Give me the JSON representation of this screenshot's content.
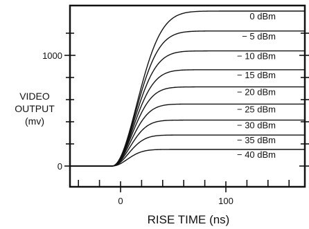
{
  "chart_data": {
    "type": "line",
    "xlabel": "RISE TIME (ns)",
    "ylabel_lines": [
      "VIDEO",
      "OUTPUT",
      "(mv)"
    ],
    "xlim": [
      -45,
      175
    ],
    "ylim": [
      -20,
      1480
    ],
    "x_ticks": [
      {
        "value": 0,
        "label": "0"
      },
      {
        "value": 100,
        "label": "100"
      }
    ],
    "x_minor_ticks": [
      -40,
      -20,
      20,
      40,
      60,
      80,
      120,
      140,
      160
    ],
    "y_ticks": [
      {
        "value": 0,
        "label": "0"
      },
      {
        "value": 1000,
        "label": "1000"
      }
    ],
    "y_minor_ticks": [
      200,
      400,
      600,
      800,
      1200
    ],
    "grid": false,
    "legend": "inline-right",
    "series": [
      {
        "name": "0 dBm",
        "baseline": 0,
        "final": 1400
      },
      {
        "name": "− 5 dBm",
        "baseline": 0,
        "final": 1220
      },
      {
        "name": "− 10 dBm",
        "baseline": 0,
        "final": 1040
      },
      {
        "name": "− 15 dBm",
        "baseline": 0,
        "final": 870
      },
      {
        "name": "− 20 dBm",
        "baseline": 0,
        "final": 715
      },
      {
        "name": "− 25 dBm",
        "baseline": 0,
        "final": 560
      },
      {
        "name": "− 30 dBm",
        "baseline": 0,
        "final": 415
      },
      {
        "name": "− 35 dBm",
        "baseline": 0,
        "final": 280
      },
      {
        "name": "− 40 dBm",
        "baseline": 0,
        "final": 150
      }
    ]
  }
}
